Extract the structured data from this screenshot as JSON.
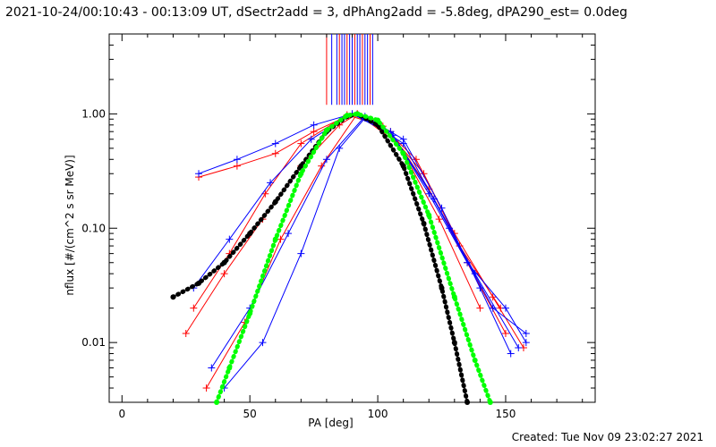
{
  "title": "2021-10-24/00:10:43 - 00:13:09 UT, dSectr2add = 3, dPhAng2add = -5.8deg, dPA290_est=  0.0deg",
  "footer": "Created: Tue Nov 09 23:02:27 2021",
  "chart_data": {
    "type": "line",
    "xlabel": "PA [deg]",
    "ylabel": "nflux [#/(cm^2 s sr MeV)]",
    "xlim": [
      -5,
      185
    ],
    "ylim": [
      0.003,
      5.0
    ],
    "yscale": "log",
    "xticks": [
      0,
      50,
      100,
      150
    ],
    "yticks": [
      0.01,
      0.1,
      1.0
    ],
    "ytick_labels": [
      "0.01",
      "0.10",
      "1.00"
    ],
    "colors": {
      "red": "#ff0000",
      "blue": "#0000ff",
      "black": "#000000",
      "green": "#00ff00"
    },
    "series": [
      {
        "style": "red-lines-plus",
        "curves": [
          {
            "x": [
              25,
              40,
              55,
              70,
              85,
              92,
              100,
              115,
              130,
              145,
              157
            ],
            "y": [
              0.012,
              0.04,
              0.12,
              0.35,
              0.8,
              1.0,
              0.85,
              0.4,
              0.09,
              0.025,
              0.009
            ]
          },
          {
            "x": [
              30,
              45,
              60,
              75,
              90,
              105,
              120,
              135,
              150
            ],
            "y": [
              0.28,
              0.35,
              0.45,
              0.7,
              1.0,
              0.7,
              0.22,
              0.05,
              0.012
            ]
          },
          {
            "x": [
              28,
              42,
              56,
              70,
              88,
              102,
              118,
              132,
              148
            ],
            "y": [
              0.02,
              0.06,
              0.2,
              0.55,
              0.98,
              0.78,
              0.3,
              0.07,
              0.02
            ]
          },
          {
            "x": [
              33,
              48,
              62,
              78,
              92,
              108,
              124,
              140
            ],
            "y": [
              0.004,
              0.015,
              0.08,
              0.35,
              1.0,
              0.55,
              0.12,
              0.02
            ]
          }
        ]
      },
      {
        "style": "blue-lines-plus",
        "curves": [
          {
            "x": [
              30,
              45,
              60,
              75,
              90,
              105,
              120,
              135,
              150,
              158
            ],
            "y": [
              0.3,
              0.4,
              0.55,
              0.8,
              1.0,
              0.7,
              0.2,
              0.05,
              0.02,
              0.01
            ]
          },
          {
            "x": [
              28,
              42,
              58,
              74,
              90,
              106,
              122,
              138,
              155
            ],
            "y": [
              0.03,
              0.08,
              0.25,
              0.6,
              1.0,
              0.65,
              0.18,
              0.04,
              0.009
            ]
          },
          {
            "x": [
              35,
              50,
              65,
              80,
              95,
              110,
              125,
              140,
              152
            ],
            "y": [
              0.006,
              0.02,
              0.09,
              0.4,
              0.95,
              0.6,
              0.15,
              0.03,
              0.008
            ]
          },
          {
            "x": [
              40,
              55,
              70,
              85,
              95,
              110,
              128,
              145,
              158
            ],
            "y": [
              0.004,
              0.01,
              0.06,
              0.5,
              0.92,
              0.55,
              0.1,
              0.02,
              0.012
            ]
          }
        ]
      },
      {
        "style": "black-dots",
        "curves": [
          {
            "x": [
              20,
              30,
              40,
              50,
              60,
              70,
              80,
              88,
              92,
              100,
              110,
              118,
              125,
              130,
              135
            ],
            "y": [
              0.025,
              0.033,
              0.05,
              0.09,
              0.17,
              0.35,
              0.7,
              0.95,
              1.0,
              0.8,
              0.35,
              0.11,
              0.03,
              0.01,
              0.003
            ]
          }
        ]
      },
      {
        "style": "green-dots",
        "curves": [
          {
            "x": [
              37,
              42,
              50,
              60,
              70,
              80,
              88,
              92,
              100,
              110,
              120,
              130,
              138,
              144
            ],
            "y": [
              0.003,
              0.006,
              0.018,
              0.08,
              0.3,
              0.72,
              0.97,
              1.0,
              0.88,
              0.45,
              0.13,
              0.025,
              0.007,
              0.003
            ]
          }
        ]
      },
      {
        "style": "vertical-lines",
        "x": [
          80,
          82,
          84,
          85,
          86,
          87,
          88,
          89,
          90,
          91,
          92,
          93,
          94,
          95,
          96,
          97,
          98
        ],
        "y_from": 1.2,
        "y_to": 5.0
      }
    ]
  }
}
